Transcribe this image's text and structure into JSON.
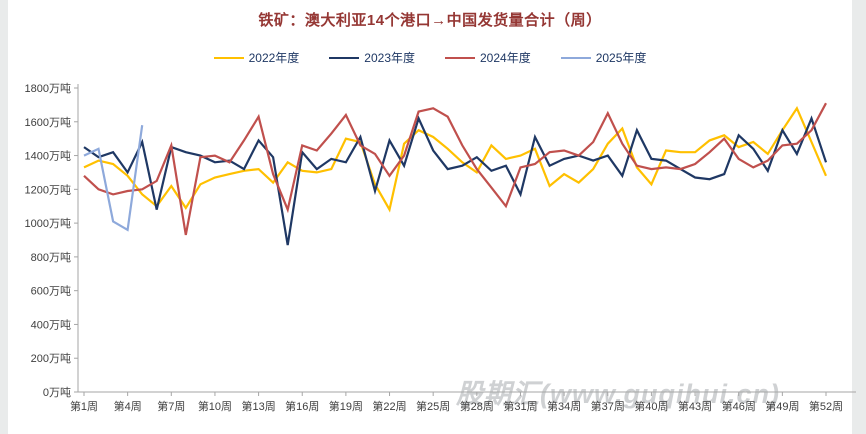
{
  "title": {
    "text": "铁矿：澳大利亚14个港口→中国发货量合计（周）",
    "color": "#953734"
  },
  "legend": {
    "text_color": "#1F3864",
    "items": [
      {
        "label": "2022年度",
        "color": "#FFC000"
      },
      {
        "label": "2023年度",
        "color": "#1F3864"
      },
      {
        "label": "2024年度",
        "color": "#C0504D"
      },
      {
        "label": "2025年度",
        "color": "#8EA9DB"
      }
    ]
  },
  "watermark": {
    "text": "股期汇(www.guqihui.cn)",
    "color": "#c3c6c8"
  },
  "chart_data": {
    "type": "line",
    "title": "铁矿：澳大利亚14个港口→中国发货量合计（周）",
    "xlabel": "周",
    "ylabel": "万吨",
    "ylim": [
      0,
      1800
    ],
    "grid": false,
    "legend_position": "top",
    "y_tick_values": [
      0,
      200,
      400,
      600,
      800,
      1000,
      1200,
      1400,
      1600,
      1800
    ],
    "y_tick_labels": [
      "0万吨",
      "200万吨",
      "400万吨",
      "600万吨",
      "800万吨",
      "1000万吨",
      "1200万吨",
      "1400万吨",
      "1600万吨",
      "1800万吨"
    ],
    "x_ticks": [
      {
        "week": 1,
        "label": "第1周"
      },
      {
        "week": 4,
        "label": "第4周"
      },
      {
        "week": 7,
        "label": "第7周"
      },
      {
        "week": 10,
        "label": "第10周"
      },
      {
        "week": 13,
        "label": "第13周"
      },
      {
        "week": 16,
        "label": "第16周"
      },
      {
        "week": 19,
        "label": "第19周"
      },
      {
        "week": 22,
        "label": "第22周"
      },
      {
        "week": 25,
        "label": "第25周"
      },
      {
        "week": 28,
        "label": "第28周"
      },
      {
        "week": 31,
        "label": "第31周"
      },
      {
        "week": 34,
        "label": "第34周"
      },
      {
        "week": 37,
        "label": "第37周"
      },
      {
        "week": 40,
        "label": "第40周"
      },
      {
        "week": 43,
        "label": "第43周"
      },
      {
        "week": 46,
        "label": "第46周"
      },
      {
        "week": 49,
        "label": "第49周"
      },
      {
        "week": 52,
        "label": "第52周"
      }
    ],
    "series": [
      {
        "name": "2022年度",
        "color": "#FFC000",
        "start_week": 1,
        "values": [
          1330,
          1370,
          1350,
          1280,
          1170,
          1100,
          1220,
          1090,
          1230,
          1270,
          1290,
          1310,
          1320,
          1240,
          1360,
          1310,
          1300,
          1320,
          1500,
          1480,
          1230,
          1080,
          1470,
          1550,
          1510,
          1440,
          1360,
          1300,
          1460,
          1380,
          1400,
          1440,
          1220,
          1290,
          1240,
          1320,
          1470,
          1560,
          1330,
          1230,
          1430,
          1420,
          1420,
          1490,
          1520,
          1450,
          1480,
          1410,
          1550,
          1680,
          1480,
          1280
        ]
      },
      {
        "name": "2023年度",
        "color": "#1F3864",
        "start_week": 1,
        "values": [
          1450,
          1390,
          1420,
          1300,
          1480,
          1080,
          1450,
          1420,
          1400,
          1360,
          1370,
          1320,
          1490,
          1390,
          870,
          1420,
          1320,
          1380,
          1360,
          1510,
          1190,
          1490,
          1340,
          1620,
          1430,
          1320,
          1340,
          1390,
          1310,
          1340,
          1170,
          1510,
          1340,
          1380,
          1400,
          1370,
          1400,
          1280,
          1550,
          1380,
          1370,
          1320,
          1270,
          1260,
          1290,
          1520,
          1440,
          1310,
          1550,
          1410,
          1620,
          1360
        ]
      },
      {
        "name": "2024年度",
        "color": "#C0504D",
        "start_week": 1,
        "values": [
          1280,
          1200,
          1170,
          1190,
          1200,
          1250,
          1460,
          930,
          1390,
          1400,
          1360,
          1490,
          1630,
          1290,
          1080,
          1460,
          1430,
          1530,
          1640,
          1460,
          1410,
          1280,
          1400,
          1660,
          1680,
          1630,
          1460,
          1320,
          1210,
          1100,
          1330,
          1350,
          1420,
          1430,
          1400,
          1480,
          1650,
          1470,
          1340,
          1320,
          1330,
          1320,
          1350,
          1420,
          1500,
          1380,
          1330,
          1370,
          1460,
          1470,
          1550,
          1710
        ]
      },
      {
        "name": "2025年度",
        "color": "#8EA9DB",
        "start_week": 1,
        "values": [
          1400,
          1440,
          1010,
          960,
          1580
        ]
      }
    ]
  }
}
